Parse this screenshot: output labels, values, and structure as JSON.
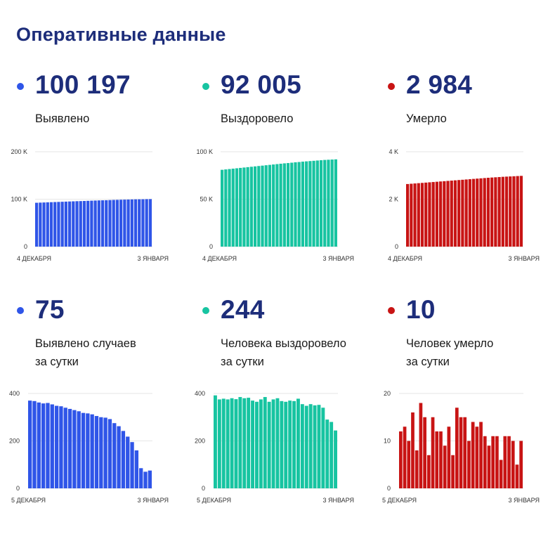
{
  "header": {
    "title": "Оперативные данные"
  },
  "colors": {
    "blue": "#2f55e8",
    "teal": "#17c4a1",
    "red": "#c81414",
    "navy": "#1d2d7a"
  },
  "panels": [
    {
      "value": "100 197",
      "label": [
        "Выявлено"
      ],
      "color": "#2f55e8",
      "chart_data": {
        "type": "bar",
        "ylim": [
          0,
          200000
        ],
        "yticks": [
          {
            "v": 0,
            "l": "0"
          },
          {
            "v": 100000,
            "l": "100 K"
          },
          {
            "v": 200000,
            "l": "200 K"
          }
        ],
        "xlabels": [
          "4 ДЕКАБРЯ",
          "3 ЯНВАРЯ"
        ],
        "values": [
          92500,
          92800,
          93100,
          93400,
          93700,
          94000,
          94300,
          94600,
          94900,
          95200,
          95500,
          95800,
          96000,
          96300,
          96600,
          96900,
          97200,
          97500,
          97700,
          97900,
          98200,
          98500,
          98700,
          98900,
          99100,
          99300,
          99500,
          99700,
          99800,
          99900,
          100100,
          100197
        ]
      }
    },
    {
      "value": "92 005",
      "label": [
        "Выздоровело"
      ],
      "color": "#17c4a1",
      "chart_data": {
        "type": "bar",
        "ylim": [
          0,
          100000
        ],
        "yticks": [
          {
            "v": 0,
            "l": "0"
          },
          {
            "v": 50000,
            "l": "50 K"
          },
          {
            "v": 100000,
            "l": "100 K"
          }
        ],
        "xlabels": [
          "4 ДЕКАБРЯ",
          "3 ЯНВАРЯ"
        ],
        "values": [
          81000,
          81400,
          81800,
          82200,
          82600,
          83000,
          83400,
          83800,
          84200,
          84600,
          85000,
          85400,
          85800,
          86200,
          86600,
          87000,
          87400,
          87800,
          88100,
          88500,
          88900,
          89200,
          89600,
          89900,
          90200,
          90500,
          90800,
          91100,
          91400,
          91600,
          91800,
          92005
        ]
      }
    },
    {
      "value": "2 984",
      "label": [
        "Умерло"
      ],
      "color": "#c81414",
      "chart_data": {
        "type": "bar",
        "ylim": [
          0,
          4000
        ],
        "yticks": [
          {
            "v": 0,
            "l": "0"
          },
          {
            "v": 2000,
            "l": "2 K"
          },
          {
            "v": 4000,
            "l": "4 K"
          }
        ],
        "xlabels": [
          "4 ДЕКАБРЯ",
          "3 ЯНВАРЯ"
        ],
        "values": [
          2640,
          2652,
          2664,
          2676,
          2688,
          2700,
          2712,
          2724,
          2736,
          2748,
          2760,
          2772,
          2784,
          2796,
          2808,
          2820,
          2832,
          2844,
          2856,
          2868,
          2880,
          2892,
          2904,
          2914,
          2924,
          2934,
          2944,
          2952,
          2960,
          2968,
          2976,
          2984
        ]
      }
    },
    {
      "value": "75",
      "label": [
        "Выявлено случаев",
        "за сутки"
      ],
      "color": "#2f55e8",
      "chart_data": {
        "type": "bar",
        "ylim": [
          0,
          400
        ],
        "yticks": [
          {
            "v": 0,
            "l": "0"
          },
          {
            "v": 200,
            "l": "200"
          },
          {
            "v": 400,
            "l": "400"
          }
        ],
        "xlabels": [
          "5 ДЕКАБРЯ",
          "3 ЯНВАРЯ"
        ],
        "values": [
          370,
          368,
          362,
          358,
          360,
          354,
          348,
          346,
          340,
          335,
          330,
          325,
          318,
          316,
          312,
          305,
          300,
          298,
          292,
          275,
          262,
          242,
          218,
          195,
          160,
          85,
          70,
          75
        ]
      }
    },
    {
      "value": "244",
      "label": [
        "Человека выздоровело",
        "за сутки"
      ],
      "color": "#17c4a1",
      "chart_data": {
        "type": "bar",
        "ylim": [
          0,
          400
        ],
        "yticks": [
          {
            "v": 0,
            "l": "0"
          },
          {
            "v": 200,
            "l": "200"
          },
          {
            "v": 400,
            "l": "400"
          }
        ],
        "xlabels": [
          "5 ДЕКАБРЯ",
          "3 ЯНВАРЯ"
        ],
        "values": [
          392,
          375,
          378,
          375,
          380,
          376,
          385,
          380,
          382,
          370,
          365,
          375,
          385,
          365,
          375,
          380,
          368,
          365,
          370,
          368,
          378,
          355,
          348,
          355,
          350,
          352,
          340,
          290,
          280,
          244
        ]
      }
    },
    {
      "value": "10",
      "label": [
        "Человек умерло",
        "за сутки"
      ],
      "color": "#c81414",
      "chart_data": {
        "type": "bar",
        "ylim": [
          0,
          20
        ],
        "yticks": [
          {
            "v": 0,
            "l": "0"
          },
          {
            "v": 10,
            "l": "10"
          },
          {
            "v": 20,
            "l": "20"
          }
        ],
        "xlabels": [
          "5 ДЕКАБРЯ",
          "3 ЯНВАРЯ"
        ],
        "values": [
          12,
          13,
          10,
          16,
          8,
          18,
          15,
          7,
          15,
          12,
          12,
          9,
          13,
          7,
          17,
          15,
          15,
          10,
          14,
          13,
          14,
          11,
          9,
          11,
          11,
          6,
          11,
          11,
          10,
          5,
          10
        ]
      }
    }
  ]
}
